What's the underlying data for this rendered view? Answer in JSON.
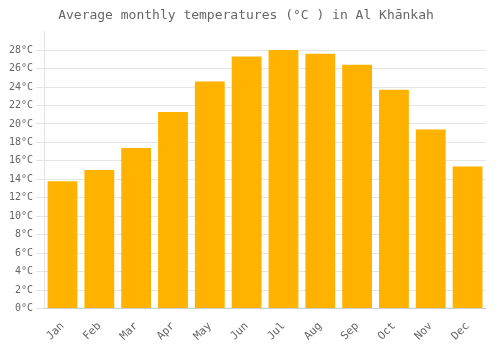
{
  "chart_data": {
    "type": "bar",
    "title": "Average monthly temperatures (°C ) in Al Khānkah",
    "categories": [
      "Jan",
      "Feb",
      "Mar",
      "Apr",
      "May",
      "Jun",
      "Jul",
      "Aug",
      "Sep",
      "Oct",
      "Nov",
      "Dec"
    ],
    "values": [
      13.8,
      15.0,
      17.4,
      21.3,
      24.6,
      27.3,
      28.0,
      27.6,
      26.4,
      23.7,
      19.4,
      15.4
    ],
    "color": "#FFB300",
    "ylim": [
      0,
      30
    ],
    "yticks": [
      {
        "value": 0,
        "label": "0°C"
      },
      {
        "value": 2,
        "label": "2°C"
      },
      {
        "value": 4,
        "label": "4°C"
      },
      {
        "value": 6,
        "label": "6°C"
      },
      {
        "value": 8,
        "label": "8°C"
      },
      {
        "value": 10,
        "label": "10°C"
      },
      {
        "value": 12,
        "label": "12°C"
      },
      {
        "value": 14,
        "label": "14°C"
      },
      {
        "value": 16,
        "label": "16°C"
      },
      {
        "value": 18,
        "label": "18°C"
      },
      {
        "value": 20,
        "label": "20°C"
      },
      {
        "value": 22,
        "label": "22°C"
      },
      {
        "value": 24,
        "label": "24°C"
      },
      {
        "value": 26,
        "label": "26°C"
      },
      {
        "value": 28,
        "label": "28°C"
      }
    ],
    "grid": true
  }
}
